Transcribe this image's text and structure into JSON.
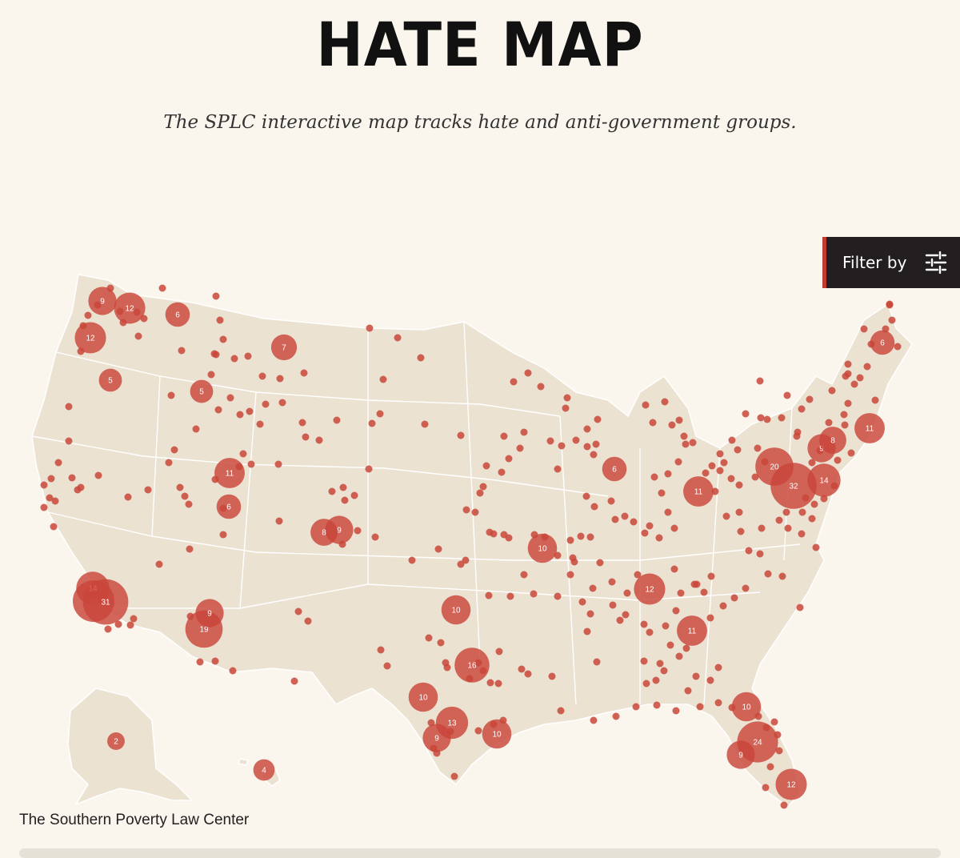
{
  "header": {
    "title": "HATE MAP",
    "subtitle": "The SPLC interactive map tracks hate and anti-government groups."
  },
  "filter": {
    "label": "Filter by",
    "icon": "sliders-icon"
  },
  "footer": {
    "credit": "The Southern Poverty Law Center"
  },
  "colors": {
    "background": "#faf6ee",
    "land": "#ebe2d2",
    "border": "#ffffff",
    "marker": "#c9463a",
    "button": "#231f20"
  },
  "map_data": {
    "unit": "hate and anti-government groups",
    "markers": [
      {
        "place": "Seattle, WA",
        "count": 12
      },
      {
        "place": "Olympic Peninsula, WA",
        "count": 9
      },
      {
        "place": "Spokane, WA",
        "count": 6
      },
      {
        "place": "Portland, OR",
        "count": 12
      },
      {
        "place": "Central Oregon",
        "count": 5
      },
      {
        "place": "Boise, ID",
        "count": 5
      },
      {
        "place": "Montana",
        "count": 7
      },
      {
        "place": "Salt Lake City, UT",
        "count": 11
      },
      {
        "place": "Utah County, UT",
        "count": 6
      },
      {
        "place": "Colorado Front Range",
        "count": 9
      },
      {
        "place": "Southern Colorado",
        "count": 8
      },
      {
        "place": "Los Angeles, CA",
        "count": 25
      },
      {
        "place": "Los Angeles area, CA",
        "count": 14
      },
      {
        "place": "Orange County, CA",
        "count": 31
      },
      {
        "place": "Phoenix, AZ",
        "count": 19
      },
      {
        "place": "Tucson area, AZ",
        "count": 9
      },
      {
        "place": "Dallas-Fort Worth, TX",
        "count": 16
      },
      {
        "place": "Austin, TX",
        "count": 13
      },
      {
        "place": "Houston, TX",
        "count": 10
      },
      {
        "place": "San Antonio, TX",
        "count": 9
      },
      {
        "place": "El Paso area, TX",
        "count": 10
      },
      {
        "place": "Oklahoma City, OK",
        "count": 10
      },
      {
        "place": "Kansas City area",
        "count": 10
      },
      {
        "place": "Nashville, TN",
        "count": 12
      },
      {
        "place": "Atlanta, GA",
        "count": 11
      },
      {
        "place": "Chicago, IL",
        "count": 6
      },
      {
        "place": "Detroit, MI",
        "count": 9
      },
      {
        "place": "Columbus, OH",
        "count": 11
      },
      {
        "place": "Pittsburgh, PA",
        "count": 20
      },
      {
        "place": "Philadelphia, PA",
        "count": 32
      },
      {
        "place": "Washington, DC area",
        "count": 14
      },
      {
        "place": "New York, NY",
        "count": 8
      },
      {
        "place": "Boston, MA",
        "count": 11
      },
      {
        "place": "Orlando, FL",
        "count": 24
      },
      {
        "place": "Tampa, FL",
        "count": 9
      },
      {
        "place": "Miami, FL",
        "count": 12
      },
      {
        "place": "Jacksonville, FL",
        "count": 10
      },
      {
        "place": "Maine",
        "count": 6
      },
      {
        "place": "Alaska",
        "count": 2
      },
      {
        "place": "Hawaii",
        "count": 4
      }
    ]
  }
}
